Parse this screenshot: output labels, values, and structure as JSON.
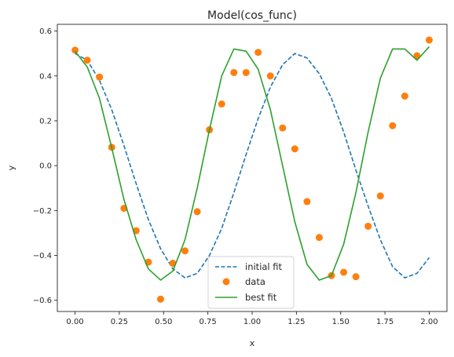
{
  "chart_data": {
    "type": "line",
    "title": "Model(cos_func)",
    "xlabel": "x",
    "ylabel": "y",
    "xlim": [
      -0.1,
      2.1
    ],
    "ylim": [
      -0.65,
      0.63
    ],
    "xticks": [
      0.0,
      0.25,
      0.5,
      0.75,
      1.0,
      1.25,
      1.5,
      1.75,
      2.0
    ],
    "xtick_labels": [
      "0.00",
      "0.25",
      "0.50",
      "0.75",
      "1.00",
      "1.25",
      "1.50",
      "1.75",
      "2.00"
    ],
    "yticks": [
      -0.6,
      -0.4,
      -0.2,
      0.0,
      0.2,
      0.4,
      0.6
    ],
    "ytick_labels": [
      "−0.6",
      "−0.4",
      "−0.2",
      "0.0",
      "0.2",
      "0.4",
      "0.6"
    ],
    "grid": false,
    "legend_position": "lower-center",
    "series": [
      {
        "name": "initial fit",
        "kind": "line",
        "style": "dashed",
        "color": "#1f77b4",
        "x": [
          0.0,
          0.069,
          0.138,
          0.207,
          0.276,
          0.345,
          0.414,
          0.483,
          0.552,
          0.621,
          0.69,
          0.759,
          0.828,
          0.897,
          0.966,
          1.034,
          1.103,
          1.172,
          1.241,
          1.31,
          1.379,
          1.448,
          1.517,
          1.586,
          1.655,
          1.724,
          1.793,
          1.862,
          1.931,
          2.0
        ],
        "y": [
          0.5,
          0.47,
          0.38,
          0.25,
          0.09,
          -0.08,
          -0.24,
          -0.37,
          -0.46,
          -0.5,
          -0.48,
          -0.4,
          -0.28,
          -0.12,
          0.05,
          0.21,
          0.35,
          0.45,
          0.5,
          0.48,
          0.41,
          0.3,
          0.15,
          -0.02,
          -0.18,
          -0.33,
          -0.45,
          -0.5,
          -0.48,
          -0.41
        ]
      },
      {
        "name": "data",
        "kind": "scatter",
        "color": "#ff7f0e",
        "x": [
          0.0,
          0.069,
          0.138,
          0.207,
          0.276,
          0.345,
          0.414,
          0.483,
          0.552,
          0.621,
          0.69,
          0.759,
          0.828,
          0.897,
          0.966,
          1.034,
          1.103,
          1.172,
          1.241,
          1.31,
          1.379,
          1.448,
          1.517,
          1.586,
          1.655,
          1.724,
          1.793,
          1.862,
          1.931,
          2.0
        ],
        "y": [
          0.515,
          0.47,
          0.395,
          0.082,
          -0.19,
          -0.29,
          -0.43,
          -0.595,
          -0.435,
          -0.38,
          -0.205,
          0.16,
          0.275,
          0.415,
          0.415,
          0.505,
          0.4,
          0.168,
          0.075,
          -0.16,
          -0.32,
          -0.49,
          -0.475,
          -0.495,
          -0.27,
          -0.135,
          0.178,
          0.31,
          0.49,
          0.56
        ]
      },
      {
        "name": "best fit",
        "kind": "line",
        "style": "solid",
        "color": "#2ca02c",
        "x": [
          0.0,
          0.069,
          0.138,
          0.207,
          0.276,
          0.345,
          0.414,
          0.483,
          0.552,
          0.621,
          0.69,
          0.759,
          0.828,
          0.897,
          0.966,
          1.034,
          1.103,
          1.172,
          1.241,
          1.31,
          1.379,
          1.448,
          1.517,
          1.586,
          1.655,
          1.724,
          1.793,
          1.862,
          1.931,
          2.0
        ],
        "y": [
          0.51,
          0.44,
          0.3,
          0.08,
          -0.15,
          -0.33,
          -0.46,
          -0.51,
          -0.47,
          -0.33,
          -0.1,
          0.16,
          0.4,
          0.52,
          0.51,
          0.43,
          0.25,
          -0.0,
          -0.25,
          -0.44,
          -0.51,
          -0.49,
          -0.35,
          -0.12,
          0.15,
          0.39,
          0.52,
          0.52,
          0.47,
          0.53
        ]
      }
    ]
  }
}
